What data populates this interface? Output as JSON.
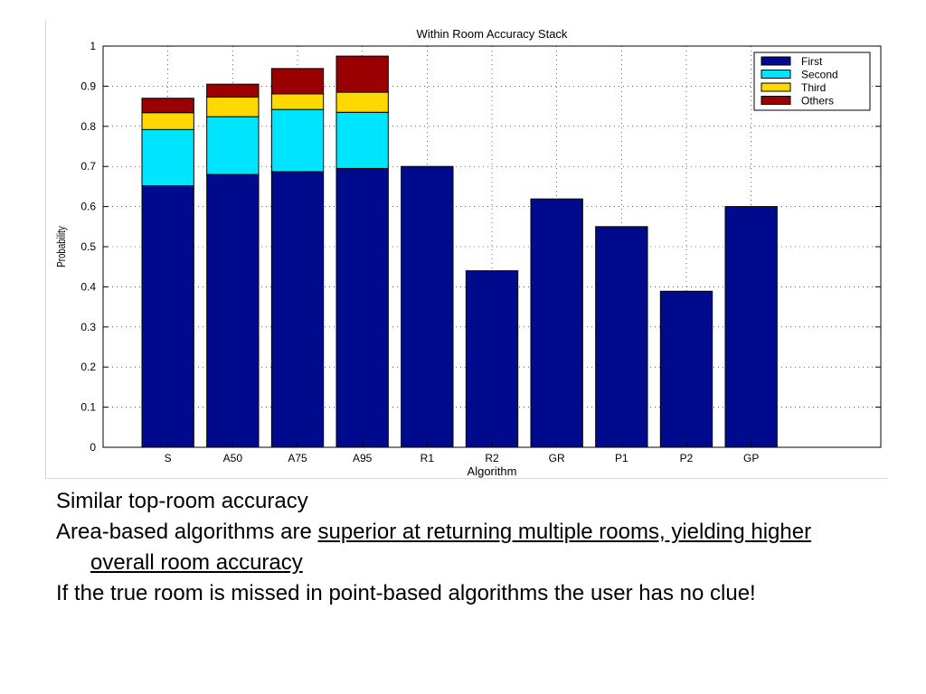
{
  "chart_data": {
    "type": "bar",
    "stacked": true,
    "title": "Within Room Accuracy Stack",
    "xlabel": "Algorithm",
    "ylabel": "Probability",
    "ylim": [
      0,
      1
    ],
    "yticks": [
      "0",
      "0.1",
      "0.2",
      "0.3",
      "0.4",
      "0.5",
      "0.6",
      "0.7",
      "0.8",
      "0.9",
      "1"
    ],
    "grid": true,
    "legend_position": "top-right",
    "categories": [
      "S",
      "A50",
      "A75",
      "A95",
      "R1",
      "R2",
      "GR",
      "P1",
      "P2",
      "GP"
    ],
    "series": [
      {
        "name": "First",
        "color": "#000a8c",
        "values": [
          0.652,
          0.68,
          0.687,
          0.695,
          0.7,
          0.44,
          0.619,
          0.55,
          0.389,
          0.6
        ]
      },
      {
        "name": "Second",
        "color": "#00e5ff",
        "values": [
          0.14,
          0.144,
          0.155,
          0.14,
          0,
          0,
          0,
          0,
          0,
          0
        ]
      },
      {
        "name": "Third",
        "color": "#ffd800",
        "values": [
          0.042,
          0.049,
          0.039,
          0.05,
          0,
          0,
          0,
          0,
          0,
          0
        ]
      },
      {
        "name": "Others",
        "color": "#9a0000",
        "values": [
          0.036,
          0.032,
          0.063,
          0.09,
          0,
          0,
          0,
          0,
          0,
          0
        ]
      }
    ]
  },
  "bullets": {
    "b1": "Similar top-room accuracy",
    "b2_pre": "Area-based algorithms are ",
    "b2_underlined": "superior at returning multiple rooms, yielding higher overall room accuracy",
    "b3": "If the true room is missed in point-based algorithms the user has no clue!"
  }
}
